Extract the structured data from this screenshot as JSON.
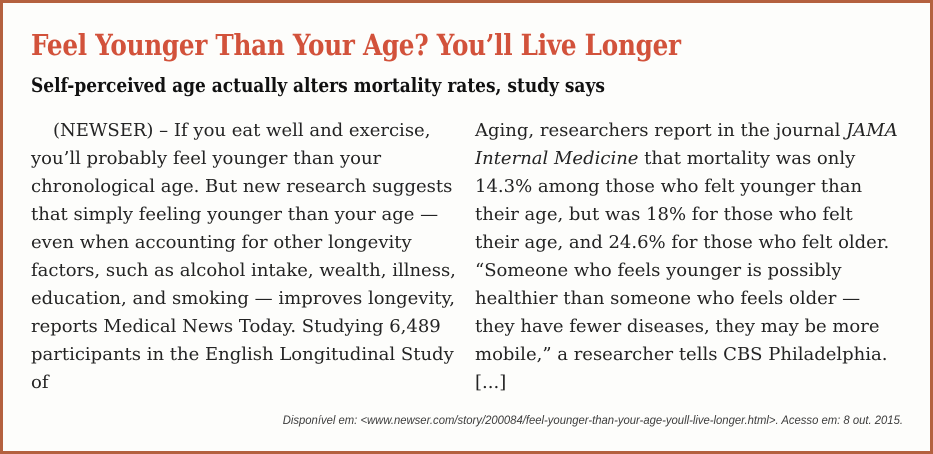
{
  "colors": {
    "accent": "#d2523b",
    "border": "#b4613f",
    "text": "#232323",
    "citation": "#3c3c3c",
    "card_bg": "#fdfdfb"
  },
  "article": {
    "title": "Feel Younger Than Your Age? You’ll Live Longer",
    "subtitle": "Self-perceived age actually alters mortality rates, study says",
    "body": {
      "column_left": "(NEWSER) – If you eat well and exercise, you’ll probably feel younger than your chronological age. But new research suggests that simply feeling younger than your age — even when accounting for other longevity factors, such as alcohol intake, wealth, illness, education, and smoking — improves longevity, reports Medical News Today. Studying 6,489 participants in the English Longitudinal Study of",
      "column_right_pre_italic": "Aging, researchers report in the journal ",
      "column_right_italic": "JAMA Internal Medicine",
      "column_right_post_italic": " that mortality was only 14.3% among those who felt younger than their age, but was 18% for those who felt their age, and 24.6% for those who felt older. “Someone who feels younger is possibly healthier than someone who feels older — they have fewer diseases, they may be more mobile,” a researcher tells CBS Philadelphia. [...]"
    },
    "citation": "Disponível em: <www.newser.com/story/200084/feel-younger-than-your-age-youll-live-longer.html>. Acesso em: 8 out. 2015."
  }
}
